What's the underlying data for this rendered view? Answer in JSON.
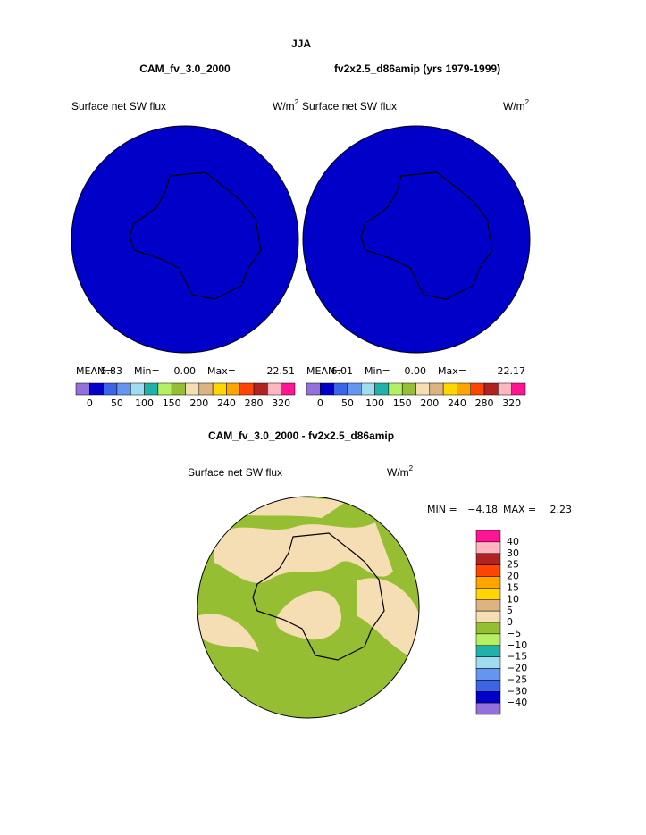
{
  "title": "JJA",
  "panels": [
    {
      "case": "CAM_fv_3.0_2000",
      "variable": "Surface net SW flux",
      "units": "W/m",
      "units_power": "2",
      "mean_label": "MEAN=",
      "mean": "5.83",
      "min_label": "Min=",
      "min": "0.00",
      "max_label": "Max=",
      "max": "22.51"
    },
    {
      "case": "fv2x2.5_d86amip (yrs 1979-1999)",
      "variable": "Surface net SW flux",
      "units": "W/m",
      "units_power": "2",
      "mean_label": "MEAN=",
      "mean": "6.01",
      "min_label": "Min=",
      "min": "0.00",
      "max_label": "Max=",
      "max": "22.17"
    }
  ],
  "colorbar": {
    "colors": [
      "#9370db",
      "#0000c8",
      "#3c64e6",
      "#6496f0",
      "#a0dcf0",
      "#20b2aa",
      "#b4f064",
      "#96be32",
      "#f5deb3",
      "#dcb482",
      "#ffd700",
      "#ffa500",
      "#ff4500",
      "#b22222",
      "#ffb6c1",
      "#ff1493"
    ],
    "labels": [
      "0",
      "50",
      "100",
      "150",
      "200",
      "240",
      "280",
      "320"
    ]
  },
  "difference": {
    "title": "CAM_fv_3.0_2000 - fv2x2.5_d86amip",
    "variable": "Surface net SW flux",
    "units": "W/m",
    "units_power": "2",
    "min_label": "MIN =",
    "min": "−4.18",
    "max_label": "MAX =",
    "max": "2.23",
    "colorbar": {
      "colors": [
        "#ff1493",
        "#ffb6c1",
        "#b22222",
        "#ff4500",
        "#ffa500",
        "#ffd700",
        "#dcb482",
        "#f5deb3",
        "#96be32",
        "#b4f064",
        "#20b2aa",
        "#a0dcf0",
        "#6496f0",
        "#3c64e6",
        "#0000c8",
        "#9370db"
      ],
      "labels": [
        "40",
        "30",
        "25",
        "20",
        "15",
        "10",
        "5",
        "0",
        "−5",
        "−10",
        "−15",
        "−20",
        "−25",
        "−30",
        "−40"
      ]
    }
  }
}
